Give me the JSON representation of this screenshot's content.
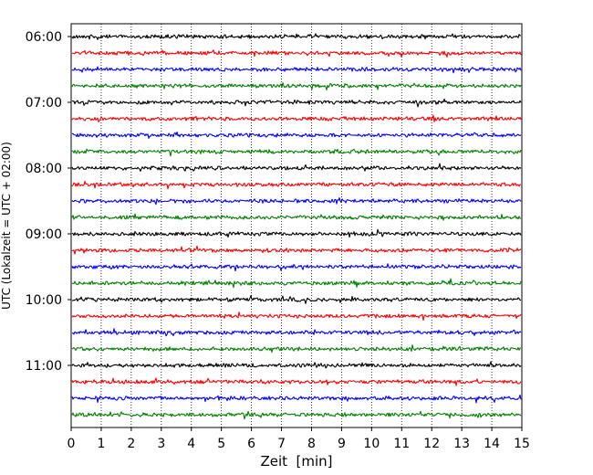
{
  "chart_data": {
    "type": "line",
    "title": "",
    "xlabel": "Zeit  [min]",
    "ylabel": "UTC (Lokalzeit = UTC + 02:00)",
    "xlim": [
      0,
      15
    ],
    "x_ticks": [
      0,
      1,
      2,
      3,
      4,
      5,
      6,
      7,
      8,
      9,
      10,
      11,
      12,
      13,
      14,
      15
    ],
    "y_tick_labels": [
      "06:00",
      "07:00",
      "08:00",
      "09:00",
      "10:00",
      "11:00"
    ],
    "trace_start_times": [
      "06:00",
      "06:15",
      "06:30",
      "06:45",
      "07:00",
      "07:15",
      "07:30",
      "07:45",
      "08:00",
      "08:15",
      "08:30",
      "08:45",
      "09:00",
      "09:15",
      "09:30",
      "09:45",
      "10:00",
      "10:15",
      "10:30",
      "10:45",
      "11:00",
      "11:15",
      "11:30",
      "11:45"
    ],
    "trace_minutes_per_line": 15,
    "trace_color_cycle": [
      "#000000",
      "#ff0000",
      "#0000ff",
      "#008000"
    ],
    "grid": "vertical dotted lines at each minute",
    "legend": "none"
  }
}
